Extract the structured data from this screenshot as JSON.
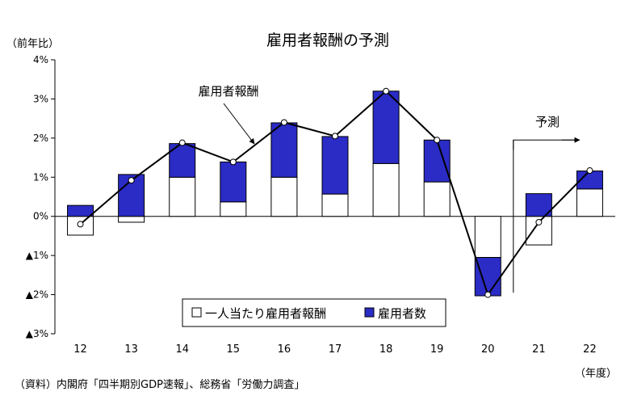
{
  "chart_data": {
    "type": "bar",
    "title": "雇用者報酬の予測",
    "ylabel": "（前年比）",
    "xlabel": "（年度）",
    "source": "（資料）内閣府「四半期別GDP速報」、総務省「労働力調査」",
    "categories": [
      "12",
      "13",
      "14",
      "15",
      "16",
      "17",
      "18",
      "19",
      "20",
      "21",
      "22"
    ],
    "ylim": [
      -3,
      4
    ],
    "yticks": [
      {
        "v": 4,
        "label": "4%"
      },
      {
        "v": 3,
        "label": "3%"
      },
      {
        "v": 2,
        "label": "2%"
      },
      {
        "v": 1,
        "label": "1%"
      },
      {
        "v": 0,
        "label": "0%"
      },
      {
        "v": -1,
        "label": "▲1%"
      },
      {
        "v": -2,
        "label": "▲2%"
      },
      {
        "v": -3,
        "label": "▲3%"
      }
    ],
    "stacked": true,
    "series": [
      {
        "name": "一人当たり雇用者報酬",
        "type": "bar",
        "color": "#ffffff",
        "values": [
          -0.48,
          -0.15,
          1.0,
          0.37,
          1.0,
          0.57,
          1.35,
          0.88,
          -1.05,
          -0.73,
          0.7
        ]
      },
      {
        "name": "雇用者数",
        "type": "bar",
        "color": "#2b2bc6",
        "values": [
          0.28,
          1.07,
          0.86,
          1.02,
          1.39,
          1.47,
          1.85,
          1.07,
          -0.98,
          0.58,
          0.46
        ]
      },
      {
        "name": "雇用者報酬",
        "type": "line",
        "color": "#000000",
        "values": [
          -0.2,
          0.92,
          1.88,
          1.39,
          2.4,
          2.05,
          3.2,
          1.95,
          -2.0,
          -0.15,
          1.17
        ]
      }
    ],
    "annotations": [
      {
        "text": "雇用者報酬",
        "target": "line"
      },
      {
        "text": "予測",
        "from_category": "21"
      }
    ],
    "legend": {
      "position": "bottom-center",
      "items": [
        "一人当たり雇用者報酬",
        "雇用者数"
      ]
    },
    "grid": false
  }
}
